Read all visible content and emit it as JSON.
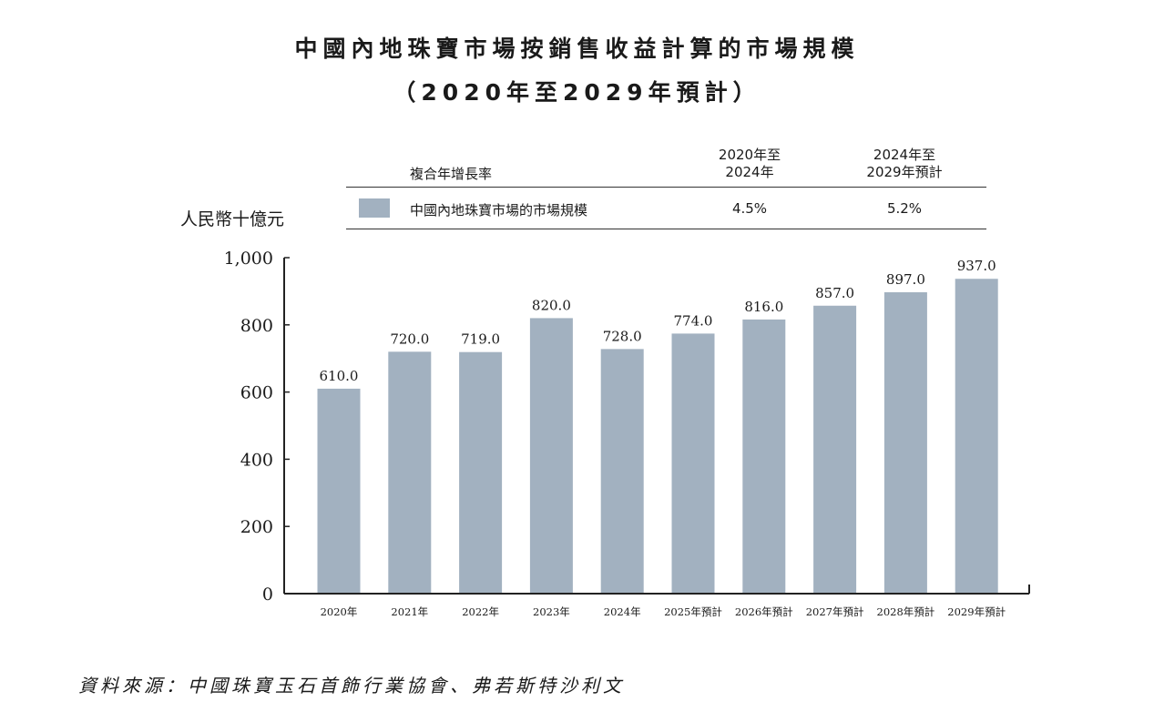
{
  "title": "中國內地珠寶市場按銷售收益計算的市場規模",
  "subtitle": "（2020年至2029年預計）",
  "legend_table": {
    "cagr_header": "複合年增長率",
    "period1_line1": "2020年至",
    "period1_line2": "2024年",
    "period2_line1": "2024年至",
    "period2_line2": "2029年預計",
    "series_name": "中國內地珠寶市場的市場規模",
    "cagr1": "4.5%",
    "cagr2": "5.2%"
  },
  "source": "資料來源：中國珠寶玉石首飾行業協會、弗若斯特沙利文",
  "chart_data": {
    "type": "bar",
    "ylabel": "人民幣十億元",
    "ylim": [
      0,
      1000
    ],
    "yticks": [
      0,
      200,
      400,
      600,
      800,
      1000
    ],
    "ytick_labels": [
      "0",
      "200",
      "400",
      "600",
      "800",
      "1,000"
    ],
    "grid": false,
    "categories": [
      "2020年",
      "2021年",
      "2022年",
      "2023年",
      "2024年",
      "2025年預計",
      "2026年預計",
      "2027年預計",
      "2028年預計",
      "2029年預計"
    ],
    "values": [
      610.0,
      720.0,
      719.0,
      820.0,
      728.0,
      774.0,
      816.0,
      857.0,
      897.0,
      937.0
    ],
    "data_labels": [
      "610.0",
      "720.0",
      "719.0",
      "820.0",
      "728.0",
      "774.0",
      "816.0",
      "857.0",
      "897.0",
      "937.0"
    ],
    "bar_color": "#a2b1c0"
  }
}
